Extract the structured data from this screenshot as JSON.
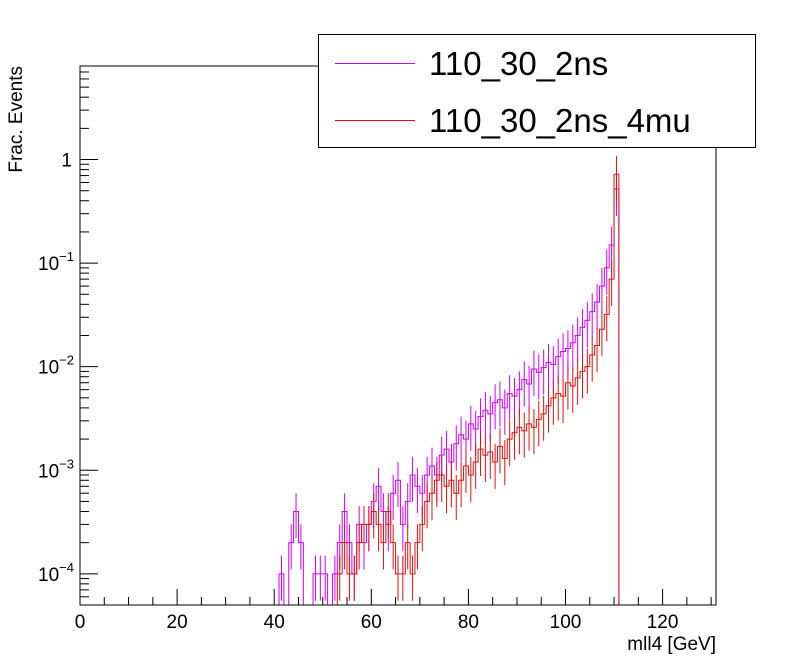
{
  "chart_data": {
    "type": "line",
    "xlabel": "mll4 [GeV]",
    "ylabel": "Frac. Events",
    "xlim": [
      0,
      131
    ],
    "ylim": [
      5e-05,
      8
    ],
    "log_y": true,
    "grid": false,
    "legend_position": "top-right",
    "x_ticks": [
      0,
      20,
      40,
      60,
      80,
      100,
      120
    ],
    "x_tick_labels": [
      "0",
      "20",
      "40",
      "60",
      "80",
      "100",
      "120"
    ],
    "y_ticks": [
      0.0001,
      0.001,
      0.01,
      0.1,
      1
    ],
    "y_tick_labels": [
      {
        "base": "10",
        "exp": "−4"
      },
      {
        "base": "10",
        "exp": "−3"
      },
      {
        "base": "10",
        "exp": "−2"
      },
      {
        "base": "10",
        "exp": "−1"
      },
      {
        "base": "1",
        "exp": ""
      }
    ],
    "bin_width": 1,
    "series": [
      {
        "name": "110_30_2ns",
        "color": "#cc00ff",
        "bins": [
          [
            41,
            0.0001
          ],
          [
            43,
            0.0002
          ],
          [
            44,
            0.0004
          ],
          [
            45,
            0.0002
          ],
          [
            48,
            0.0001
          ],
          [
            49,
            0.0001
          ],
          [
            50,
            0.0001
          ],
          [
            52,
            0.0001
          ],
          [
            53,
            0.0002
          ],
          [
            54,
            0.0004
          ],
          [
            55,
            0.0002
          ],
          [
            56,
            0.0001
          ],
          [
            57,
            0.0003
          ],
          [
            58,
            0.0002
          ],
          [
            59,
            0.0003
          ],
          [
            60,
            0.0005
          ],
          [
            61,
            0.0007
          ],
          [
            62,
            0.0004
          ],
          [
            63,
            0.0003
          ],
          [
            64,
            0.0006
          ],
          [
            65,
            0.0008
          ],
          [
            66,
            0.0003
          ],
          [
            67,
            0.0005
          ],
          [
            68,
            0.0009
          ],
          [
            69,
            0.0007
          ],
          [
            70,
            0.0006
          ],
          [
            71,
            0.0009
          ],
          [
            72,
            0.0011
          ],
          [
            73,
            0.0009
          ],
          [
            74,
            0.0014
          ],
          [
            75,
            0.0016
          ],
          [
            76,
            0.0012
          ],
          [
            77,
            0.0018
          ],
          [
            78,
            0.0022
          ],
          [
            79,
            0.002
          ],
          [
            80,
            0.0028
          ],
          [
            81,
            0.0025
          ],
          [
            82,
            0.0033
          ],
          [
            83,
            0.0038
          ],
          [
            84,
            0.0035
          ],
          [
            85,
            0.0045
          ],
          [
            86,
            0.0048
          ],
          [
            87,
            0.004
          ],
          [
            88,
            0.0055
          ],
          [
            89,
            0.0052
          ],
          [
            90,
            0.006
          ],
          [
            91,
            0.0075
          ],
          [
            92,
            0.0068
          ],
          [
            93,
            0.0095
          ],
          [
            94,
            0.0088
          ],
          [
            95,
            0.0098
          ],
          [
            96,
            0.011
          ],
          [
            97,
            0.0105
          ],
          [
            98,
            0.0125
          ],
          [
            99,
            0.014
          ],
          [
            100,
            0.015
          ],
          [
            101,
            0.017
          ],
          [
            102,
            0.02
          ],
          [
            103,
            0.024
          ],
          [
            104,
            0.028
          ],
          [
            105,
            0.034
          ],
          [
            106,
            0.042
          ],
          [
            107,
            0.06
          ],
          [
            108,
            0.09
          ],
          [
            109,
            0.15
          ],
          [
            110,
            0.52
          ]
        ]
      },
      {
        "name": "110_30_2ns_4mu",
        "color": "#dd1111",
        "bins": [
          [
            53,
            0.0001
          ],
          [
            54,
            0.0002
          ],
          [
            55,
            0.0001
          ],
          [
            56,
            0.0001
          ],
          [
            57,
            0.0002
          ],
          [
            58,
            0.0003
          ],
          [
            59,
            0.0003
          ],
          [
            60,
            0.0004
          ],
          [
            61,
            0.0003
          ],
          [
            62,
            0.0002
          ],
          [
            63,
            0.0004
          ],
          [
            64,
            0.0002
          ],
          [
            65,
            0.0001
          ],
          [
            66,
            0.0001
          ],
          [
            67,
            0.0002
          ],
          [
            68,
            0.0001
          ],
          [
            69,
            0.0002
          ],
          [
            70,
            0.0003
          ],
          [
            71,
            0.0005
          ],
          [
            72,
            0.0006
          ],
          [
            73,
            0.0008
          ],
          [
            74,
            0.0009
          ],
          [
            75,
            0.0007
          ],
          [
            76,
            0.0008
          ],
          [
            77,
            0.0006
          ],
          [
            78,
            0.0008
          ],
          [
            79,
            0.0011
          ],
          [
            80,
            0.0009
          ],
          [
            81,
            0.0012
          ],
          [
            82,
            0.0016
          ],
          [
            83,
            0.0014
          ],
          [
            84,
            0.0015
          ],
          [
            85,
            0.0012
          ],
          [
            86,
            0.0017
          ],
          [
            87,
            0.0013
          ],
          [
            88,
            0.002
          ],
          [
            89,
            0.0023
          ],
          [
            90,
            0.0026
          ],
          [
            91,
            0.0024
          ],
          [
            92,
            0.0028
          ],
          [
            93,
            0.0026
          ],
          [
            94,
            0.0031
          ],
          [
            95,
            0.0035
          ],
          [
            96,
            0.0042
          ],
          [
            97,
            0.005
          ],
          [
            98,
            0.0055
          ],
          [
            99,
            0.0052
          ],
          [
            100,
            0.007
          ],
          [
            101,
            0.0065
          ],
          [
            102,
            0.0078
          ],
          [
            103,
            0.009
          ],
          [
            104,
            0.01
          ],
          [
            105,
            0.013
          ],
          [
            106,
            0.016
          ],
          [
            107,
            0.023
          ],
          [
            108,
            0.032
          ],
          [
            109,
            0.07
          ],
          [
            110,
            0.72
          ]
        ]
      }
    ]
  }
}
